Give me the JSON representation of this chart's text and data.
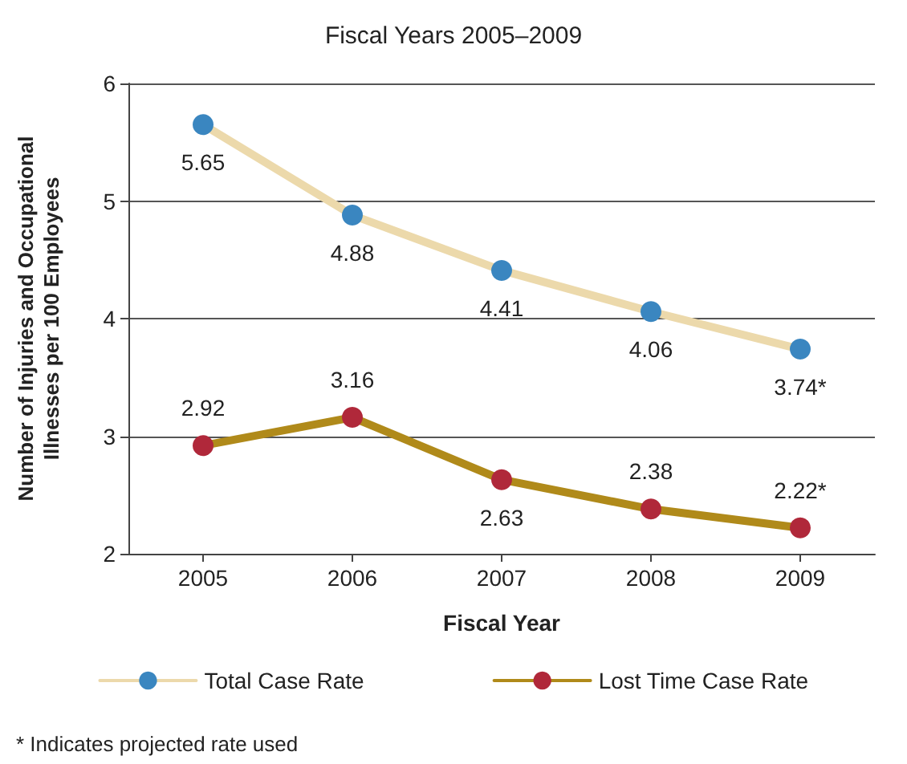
{
  "chart_data": {
    "type": "line",
    "title": "Fiscal Years 2005–2009",
    "xlabel": "Fiscal Year",
    "ylabel": "Number of Injuries and Occupational Illnesses per 100 Employees",
    "categories": [
      "2005",
      "2006",
      "2007",
      "2008",
      "2009"
    ],
    "series": [
      {
        "name": "Total Case Rate",
        "color": "#ecd9ab",
        "colors": [
          "#3a86c0",
          "#3a86c0",
          "#3a86c0",
          "#3a86c0",
          "#3a86c0"
        ],
        "values": [
          5.65,
          4.88,
          4.41,
          4.06,
          3.74
        ],
        "value_labels": [
          "5.65",
          "4.88",
          "4.41",
          "4.06",
          "3.74*"
        ]
      },
      {
        "name": "Lost Time Case Rate",
        "color": "#b08a1a",
        "colors": [
          "#b0283a",
          "#b0283a",
          "#b0283a",
          "#b0283a",
          "#b0283a"
        ],
        "values": [
          2.92,
          3.16,
          2.63,
          2.38,
          2.22
        ],
        "value_labels": [
          "2.92",
          "3.16",
          "2.63",
          "2.38",
          "2.22*"
        ]
      }
    ],
    "ylim": [
      2,
      6
    ],
    "yticks": [
      2,
      3,
      4,
      5,
      6
    ],
    "grid": "y",
    "legend": "bottom",
    "marker": "circle",
    "line_style": "solid",
    "annotations": [
      "* Indicates projected rate used"
    ]
  }
}
